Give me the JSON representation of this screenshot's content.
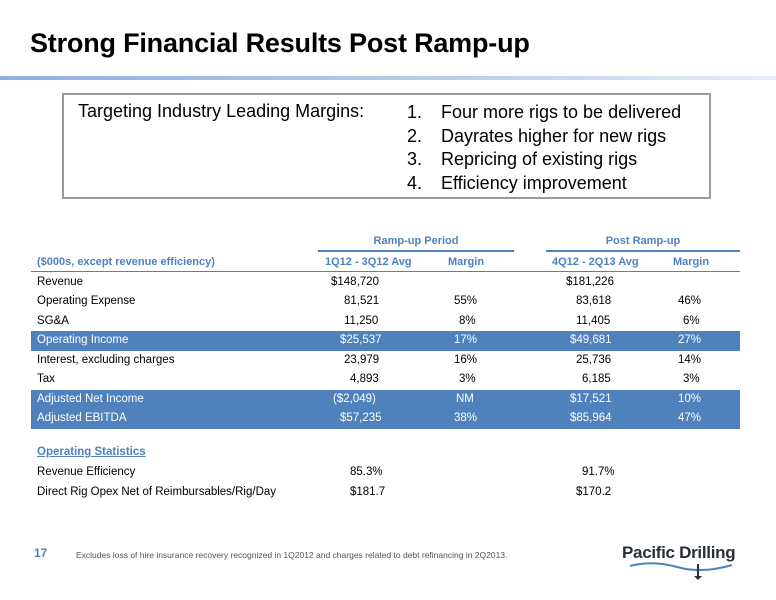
{
  "title": "Strong Financial Results Post Ramp-up",
  "targets": {
    "label": "Targeting Industry Leading Margins:",
    "items": [
      {
        "num": "1.",
        "text": "Four more rigs to be delivered"
      },
      {
        "num": "2.",
        "text": "Dayrates higher for new rigs"
      },
      {
        "num": "3.",
        "text": "Repricing of existing rigs"
      },
      {
        "num": "4.",
        "text": "Efficiency improvement"
      }
    ]
  },
  "table": {
    "groups": [
      "Ramp-up Period",
      "Post Ramp-up"
    ],
    "units_header": "($000s, except revenue efficiency)",
    "columns": [
      "1Q12 - 3Q12 Avg",
      "Margin",
      "4Q12 - 2Q13 Avg",
      "Margin"
    ],
    "rows": [
      {
        "label": "Revenue",
        "values": [
          "$148,720",
          "",
          "$181,226",
          ""
        ],
        "highlight": false
      },
      {
        "label": "Operating Expense",
        "values": [
          "81,521",
          "55%",
          "83,618",
          "46%"
        ],
        "highlight": false
      },
      {
        "label": "SG&A",
        "values": [
          "11,250",
          "8%",
          "11,405",
          "6%"
        ],
        "highlight": false
      },
      {
        "label": "Operating Income",
        "values": [
          "$25,537",
          "17%",
          "$49,681",
          "27%"
        ],
        "highlight": true
      },
      {
        "label": "Interest, excluding charges",
        "values": [
          "23,979",
          "16%",
          "25,736",
          "14%"
        ],
        "highlight": false
      },
      {
        "label": "Tax",
        "values": [
          "4,893",
          "3%",
          "6,185",
          "3%"
        ],
        "highlight": false
      },
      {
        "label": "Adjusted Net Income",
        "values": [
          "($2,049)",
          "NM",
          "$17,521",
          "10%"
        ],
        "highlight": true
      },
      {
        "label": "Adjusted EBITDA",
        "values": [
          "$57,235",
          "38%",
          "$85,964",
          "47%"
        ],
        "highlight": true
      }
    ],
    "stats_header": "Operating Statistics",
    "stats": [
      {
        "label": "Revenue Efficiency",
        "values": [
          "85.3%",
          "",
          "91.7%",
          ""
        ]
      },
      {
        "label": "Direct Rig Opex Net of Reimbursables/Rig/Day",
        "values": [
          "$181.7",
          "",
          "$170.2",
          ""
        ]
      }
    ]
  },
  "footer": {
    "page_number": "17",
    "note": "Excludes loss of hire insurance recovery recognized in 1Q2012 and charges related to debt refinancing in 2Q2013."
  },
  "logo": {
    "text": "Pacific Drilling"
  },
  "colors": {
    "accent": "#4f81bd"
  }
}
